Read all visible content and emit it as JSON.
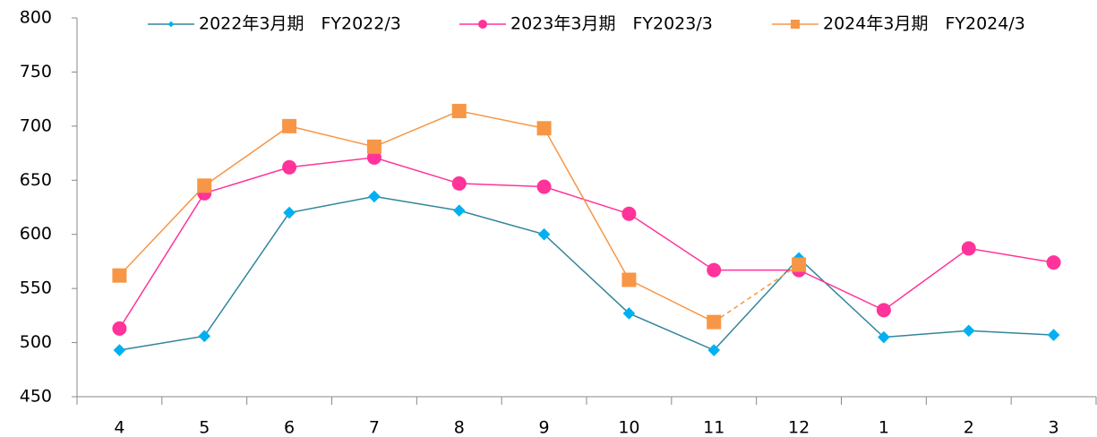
{
  "chart_data": {
    "type": "line",
    "categories": [
      "4",
      "5",
      "6",
      "7",
      "8",
      "9",
      "10",
      "11",
      "12",
      "1",
      "2",
      "3"
    ],
    "series": [
      {
        "name": "2022年3月期　FY2022/3",
        "color": "#31859c",
        "marker_color": "#00b0f0",
        "marker": "diamond",
        "values": [
          493,
          506,
          620,
          635,
          622,
          600,
          527,
          493,
          578,
          505,
          511,
          507
        ]
      },
      {
        "name": "2023年3月期　FY2023/3",
        "color": "#ff3399",
        "marker_color": "#ff3399",
        "marker": "circle",
        "values": [
          513,
          638,
          662,
          671,
          647,
          644,
          619,
          567,
          567,
          530,
          587,
          574
        ]
      },
      {
        "name": "2024年3月期　FY2024/3",
        "color": "#f79646",
        "marker_color": "#f79646",
        "marker": "square",
        "dashed_last_segment": true,
        "values": [
          562,
          645,
          700,
          681,
          714,
          698,
          558,
          519,
          572,
          null,
          null,
          null
        ]
      }
    ],
    "ylim": [
      450,
      800
    ],
    "yticks": [
      450,
      500,
      550,
      600,
      650,
      700,
      750,
      800
    ],
    "grid": false,
    "legend": "top"
  }
}
